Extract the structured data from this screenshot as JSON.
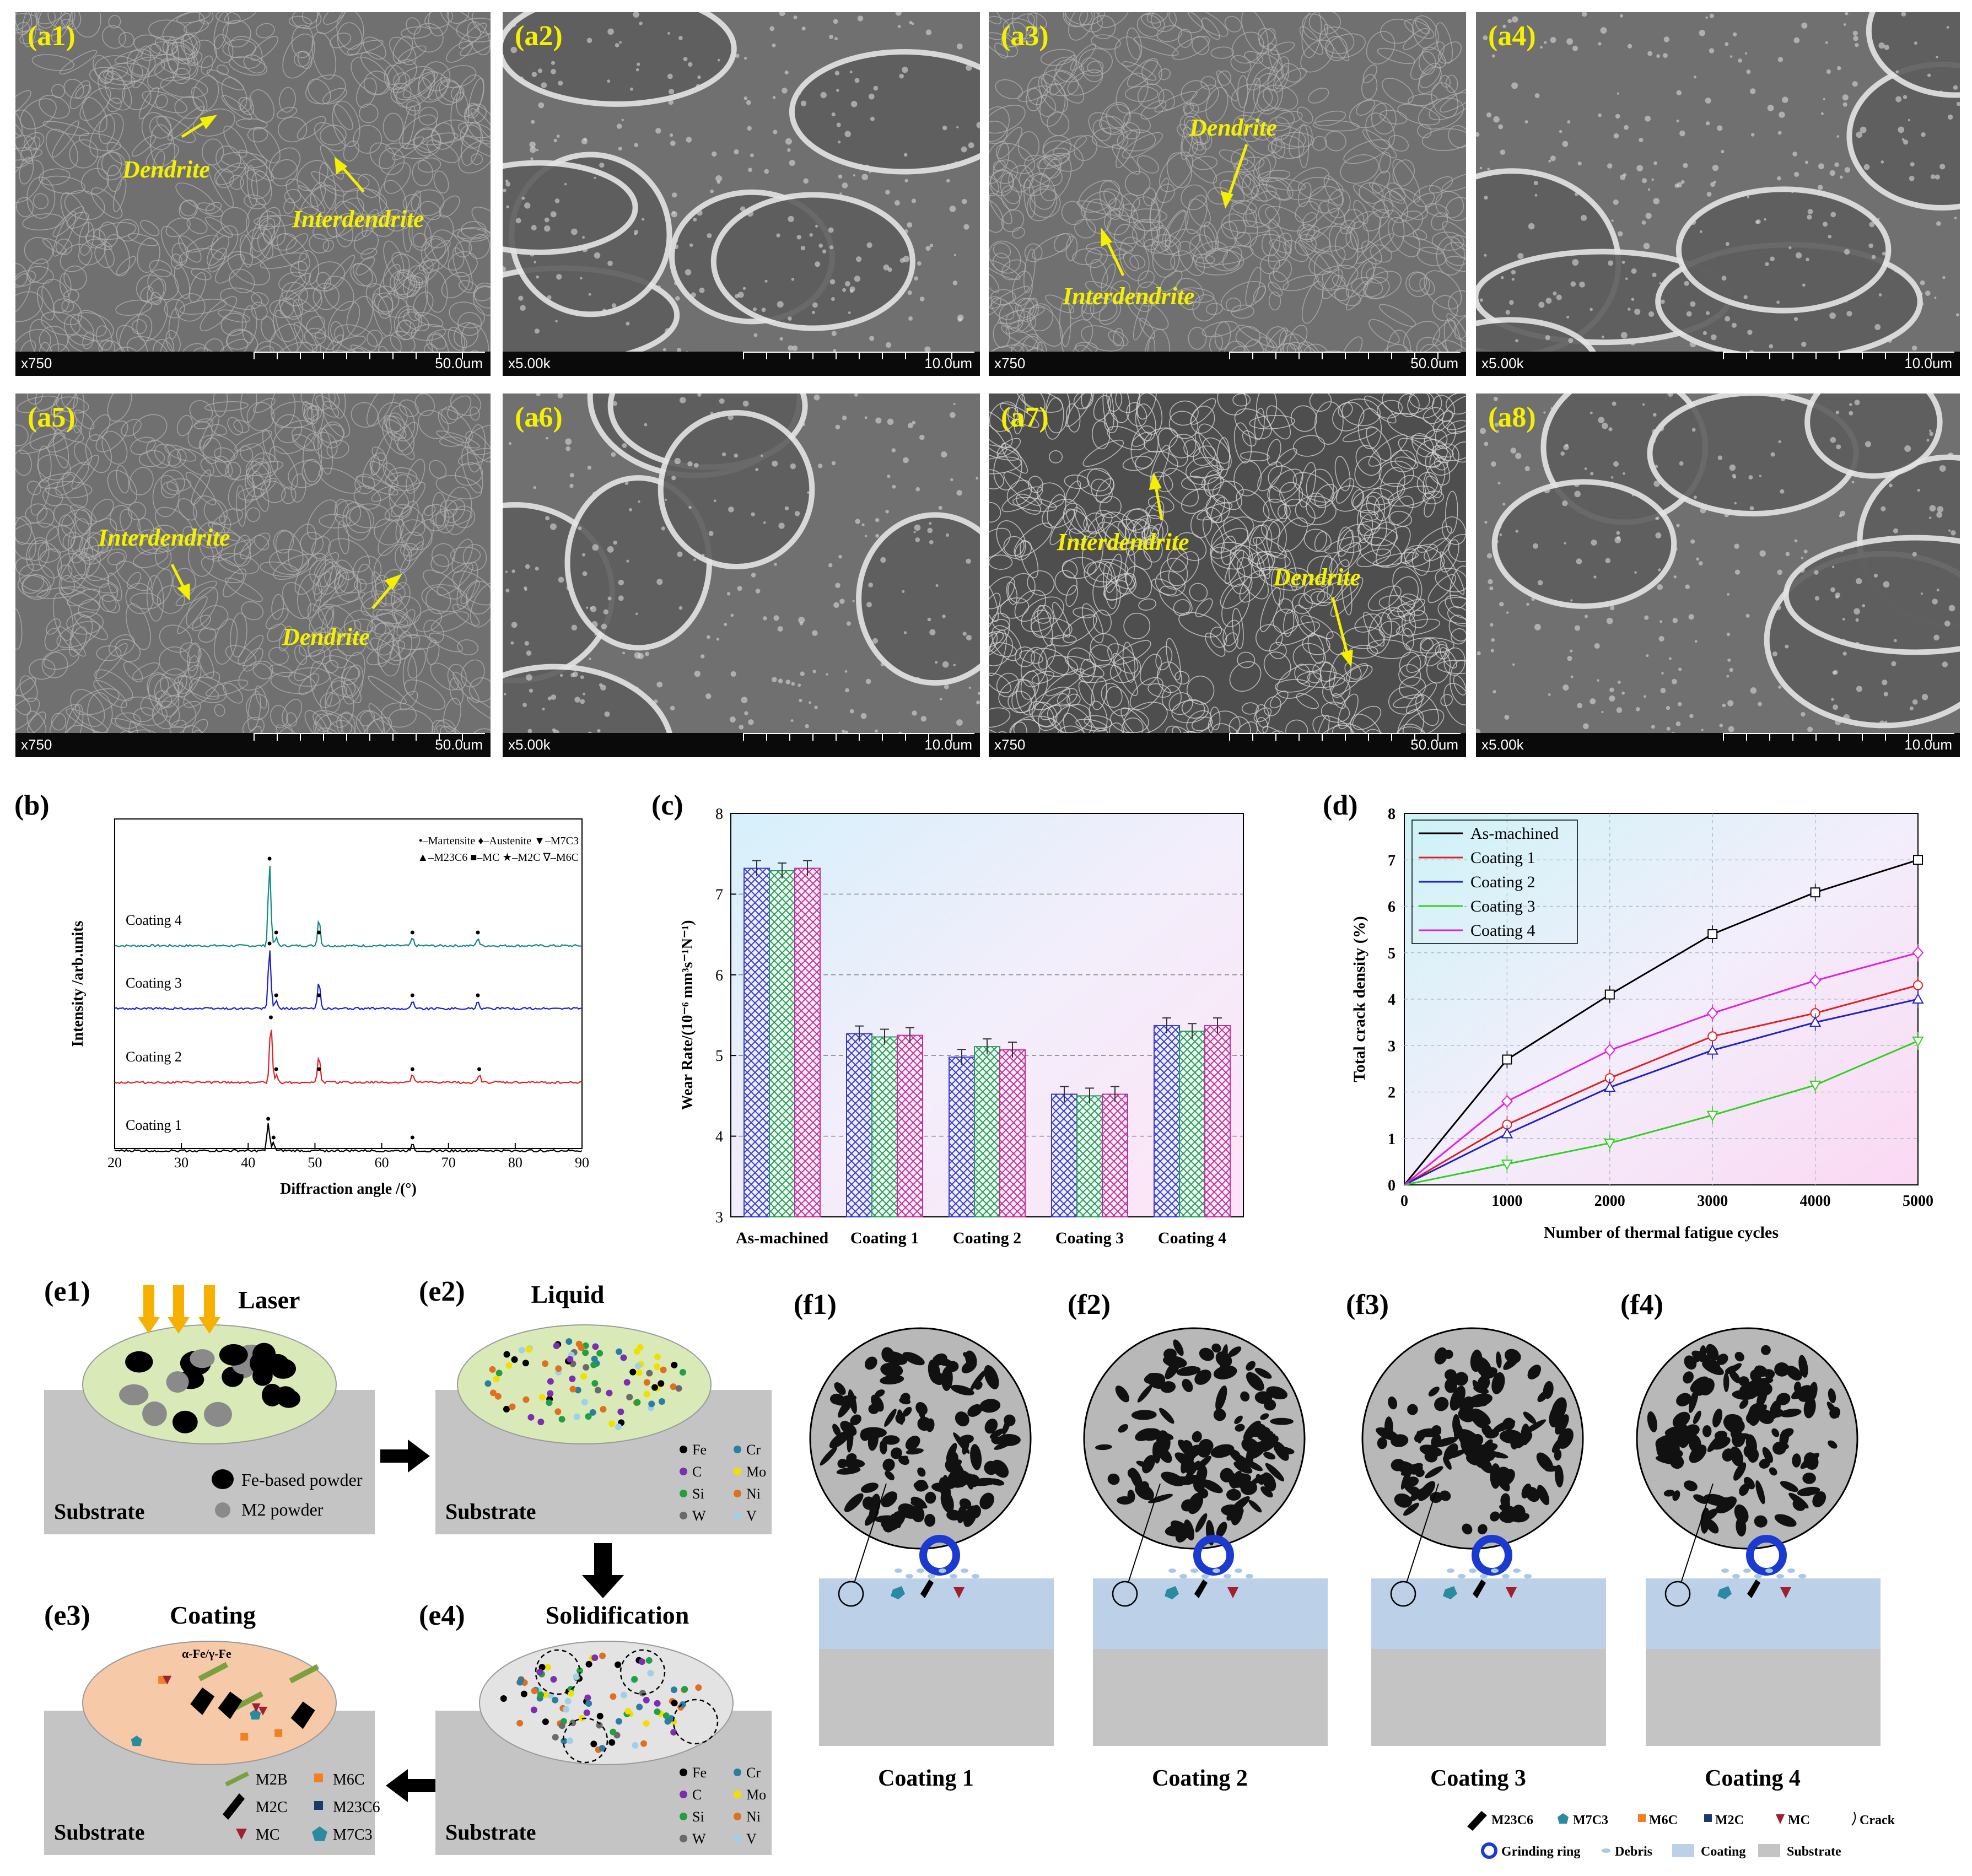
{
  "sem_panels": [
    {
      "label": "(a1)",
      "mag": "x750",
      "scale": "50.0um"
    },
    {
      "label": "(a2)",
      "mag": "x5.00k",
      "scale": "10.0um"
    },
    {
      "label": "(a3)",
      "mag": "x750",
      "scale": "50.0um"
    },
    {
      "label": "(a4)",
      "mag": "x5.00k",
      "scale": "10.0um"
    },
    {
      "label": "(a5)",
      "mag": "x750",
      "scale": "50.0um"
    },
    {
      "label": "(a6)",
      "mag": "x5.00k",
      "scale": "10.0um"
    },
    {
      "label": "(a7)",
      "mag": "x750",
      "scale": "50.0um"
    },
    {
      "label": "(a8)",
      "mag": "x5.00k",
      "scale": "10.0um"
    }
  ],
  "annotations": {
    "dendrite": "Dendrite",
    "interdendrite": "Interdendrite"
  },
  "panel_labels": {
    "b": "(b)",
    "c": "(c)",
    "d": "(d)"
  },
  "chart_data": [
    {
      "type": "line",
      "panel": "(b)",
      "xlabel": "Diffraction angle /(°)",
      "ylabel": "Intensity /arb.units",
      "xlim": [
        20,
        90
      ],
      "xticks": [
        20,
        30,
        40,
        50,
        60,
        70,
        80,
        90
      ],
      "legend": [
        "•–Martensite ♦–Austenite ▼–M7C3",
        "▲–M23C6 ■–MC ★–M2C ∇–M6C"
      ],
      "series": [
        {
          "name": "Coating 4",
          "color": "#138a82",
          "peaks": [
            43.2,
            44.2,
            50.6,
            64.6,
            74.4
          ]
        },
        {
          "name": "Coating 3",
          "color": "#1f1fc8",
          "peaks": [
            43.2,
            44.2,
            50.6,
            64.6,
            74.4
          ]
        },
        {
          "name": "Coating 2",
          "color": "#e0202a",
          "peaks": [
            43.4,
            44.2,
            50.6,
            64.6,
            74.6
          ]
        },
        {
          "name": "Coating 1",
          "color": "#000000",
          "peaks": [
            43.0,
            43.8,
            64.6
          ]
        }
      ]
    },
    {
      "type": "bar",
      "panel": "(c)",
      "ylabel": "Wear Rate/(10⁻⁶ mm³s⁻¹N⁻¹)",
      "ylim": [
        3,
        8
      ],
      "yticks": [
        3,
        4,
        5,
        6,
        7,
        8
      ],
      "categories": [
        "As-machined",
        "Coating 1",
        "Coating 2",
        "Coating 3",
        "Coating 4"
      ],
      "series": [
        {
          "color": "#3a3ad0",
          "values": [
            7.32,
            5.27,
            4.98,
            4.52,
            5.37
          ]
        },
        {
          "color": "#2a9a5a",
          "values": [
            7.29,
            5.23,
            5.11,
            4.5,
            5.3
          ]
        },
        {
          "color": "#c0309a",
          "values": [
            7.32,
            5.25,
            5.07,
            4.52,
            5.37
          ]
        }
      ]
    },
    {
      "type": "line",
      "panel": "(d)",
      "xlabel": "Number of thermal fatigue cycles",
      "ylabel": "Total crack density (%)",
      "xlim": [
        0,
        5000
      ],
      "ylim": [
        0,
        8
      ],
      "xticks": [
        0,
        1000,
        2000,
        3000,
        4000,
        5000
      ],
      "yticks": [
        0,
        1,
        2,
        3,
        4,
        5,
        6,
        7,
        8
      ],
      "x": [
        0,
        1000,
        2000,
        3000,
        4000,
        5000
      ],
      "series": [
        {
          "name": "As-machined",
          "color": "#000000",
          "marker": "square",
          "values": [
            0,
            2.7,
            4.1,
            5.4,
            6.3,
            7.0
          ]
        },
        {
          "name": "Coating 1",
          "color": "#e02020",
          "marker": "circle",
          "values": [
            0,
            1.3,
            2.3,
            3.2,
            3.7,
            4.3
          ]
        },
        {
          "name": "Coating 2",
          "color": "#2020d0",
          "marker": "triangle",
          "values": [
            0,
            1.1,
            2.1,
            2.9,
            3.5,
            4.0
          ]
        },
        {
          "name": "Coating 3",
          "color": "#30d020",
          "marker": "triangle-down",
          "values": [
            0,
            0.45,
            0.9,
            1.5,
            2.15,
            3.1
          ]
        },
        {
          "name": "Coating 4",
          "color": "#e020e0",
          "marker": "diamond",
          "values": [
            0,
            1.8,
            2.9,
            3.7,
            4.4,
            5.0
          ]
        }
      ]
    }
  ],
  "schematic_e": {
    "labels": [
      "(e1)",
      "(e2)",
      "(e3)",
      "(e4)"
    ],
    "laser": "Laser",
    "liquid": "Liquid",
    "coating": "Coating",
    "solidification": "Solidification",
    "substrate": "Substrate",
    "fe_powder": "Fe-based powder",
    "m2_powder": "M2 powder",
    "alpha_gamma": "α-Fe/γ-Fe",
    "elements": [
      {
        "name": "Fe",
        "color": "#000000"
      },
      {
        "name": "Cr",
        "color": "#2c7ea0"
      },
      {
        "name": "C",
        "color": "#7b2fb0"
      },
      {
        "name": "Mo",
        "color": "#f0e000"
      },
      {
        "name": "Si",
        "color": "#20a040"
      },
      {
        "name": "Ni",
        "color": "#e07020"
      },
      {
        "name": "W",
        "color": "#6a6a6a"
      },
      {
        "name": "V",
        "color": "#a0d0e8"
      }
    ],
    "carbides": [
      "M2B",
      "M6C",
      "M2C",
      "M23C6",
      "MC",
      "M7C3"
    ]
  },
  "schematic_f": {
    "labels": [
      "(f1)",
      "(f2)",
      "(f3)",
      "(f4)"
    ],
    "captions": [
      "Coating 1",
      "Coating 2",
      "Coating 3",
      "Coating 4"
    ],
    "legend": [
      "M23C6",
      "M7C3",
      "M6C",
      "M2C",
      "MC",
      "Crack",
      "Grinding ring",
      "Debris",
      "Coating",
      "Substrate"
    ]
  }
}
